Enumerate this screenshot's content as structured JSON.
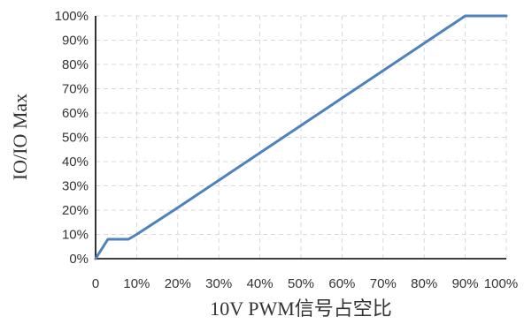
{
  "chart_data": {
    "type": "line",
    "title": "",
    "xlabel": "10V PWM信号占空比",
    "ylabel": "IO/IO Max",
    "xlim": [
      0,
      100
    ],
    "ylim": [
      0,
      100
    ],
    "x_ticks": [
      0,
      10,
      20,
      30,
      40,
      50,
      60,
      70,
      80,
      90,
      100
    ],
    "x_tick_labels": [
      "0",
      "10%",
      "20%",
      "30%",
      "40%",
      "50%",
      "60%",
      "70%",
      "80%",
      "90%",
      "100%"
    ],
    "y_ticks": [
      0,
      10,
      20,
      30,
      40,
      50,
      60,
      70,
      80,
      90,
      100
    ],
    "y_tick_labels": [
      "0%",
      "10%",
      "20%",
      "30%",
      "40%",
      "50%",
      "60%",
      "70%",
      "80%",
      "90%",
      "100%"
    ],
    "grid": true,
    "legend": "none",
    "series": [
      {
        "color": "#4f81bd",
        "x": [
          0,
          3,
          8,
          10,
          20,
          90,
          100
        ],
        "y": [
          0,
          8,
          8,
          10,
          21,
          100,
          100
        ]
      }
    ]
  }
}
